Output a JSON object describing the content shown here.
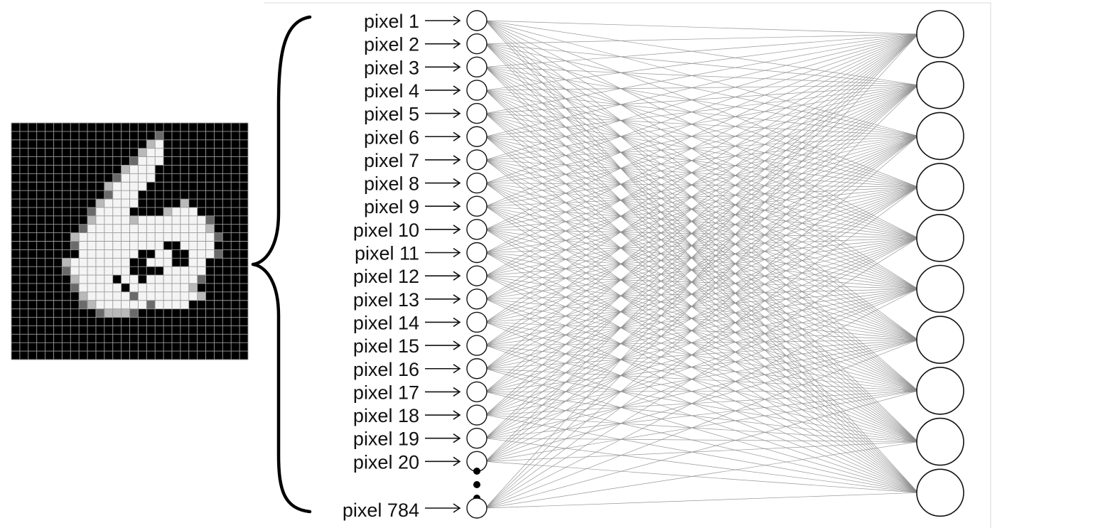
{
  "diagram": {
    "input_labels": [
      "pixel 1",
      "pixel 2",
      "pixel 3",
      "pixel 4",
      "pixel 5",
      "pixel 6",
      "pixel 7",
      "pixel 8",
      "pixel 9",
      "pixel 10",
      "pixel 11",
      "pixel 12",
      "pixel 13",
      "pixel 14",
      "pixel 15",
      "pixel 16",
      "pixel 17",
      "pixel 18",
      "pixel 19",
      "pixel 20"
    ],
    "last_input_label": "pixel 784",
    "output_node_count": 10,
    "digit_image": {
      "grid_size": 28,
      "depicted_digit": "6"
    },
    "colors": {
      "edge": "#8c8c8c",
      "image_background": "#000000",
      "image_grid": "#9a9a9a",
      "ink_bright": "#f4f4f4",
      "ink_mid": "#b9b9b9",
      "ink_dim": "#6a6a6a"
    }
  }
}
